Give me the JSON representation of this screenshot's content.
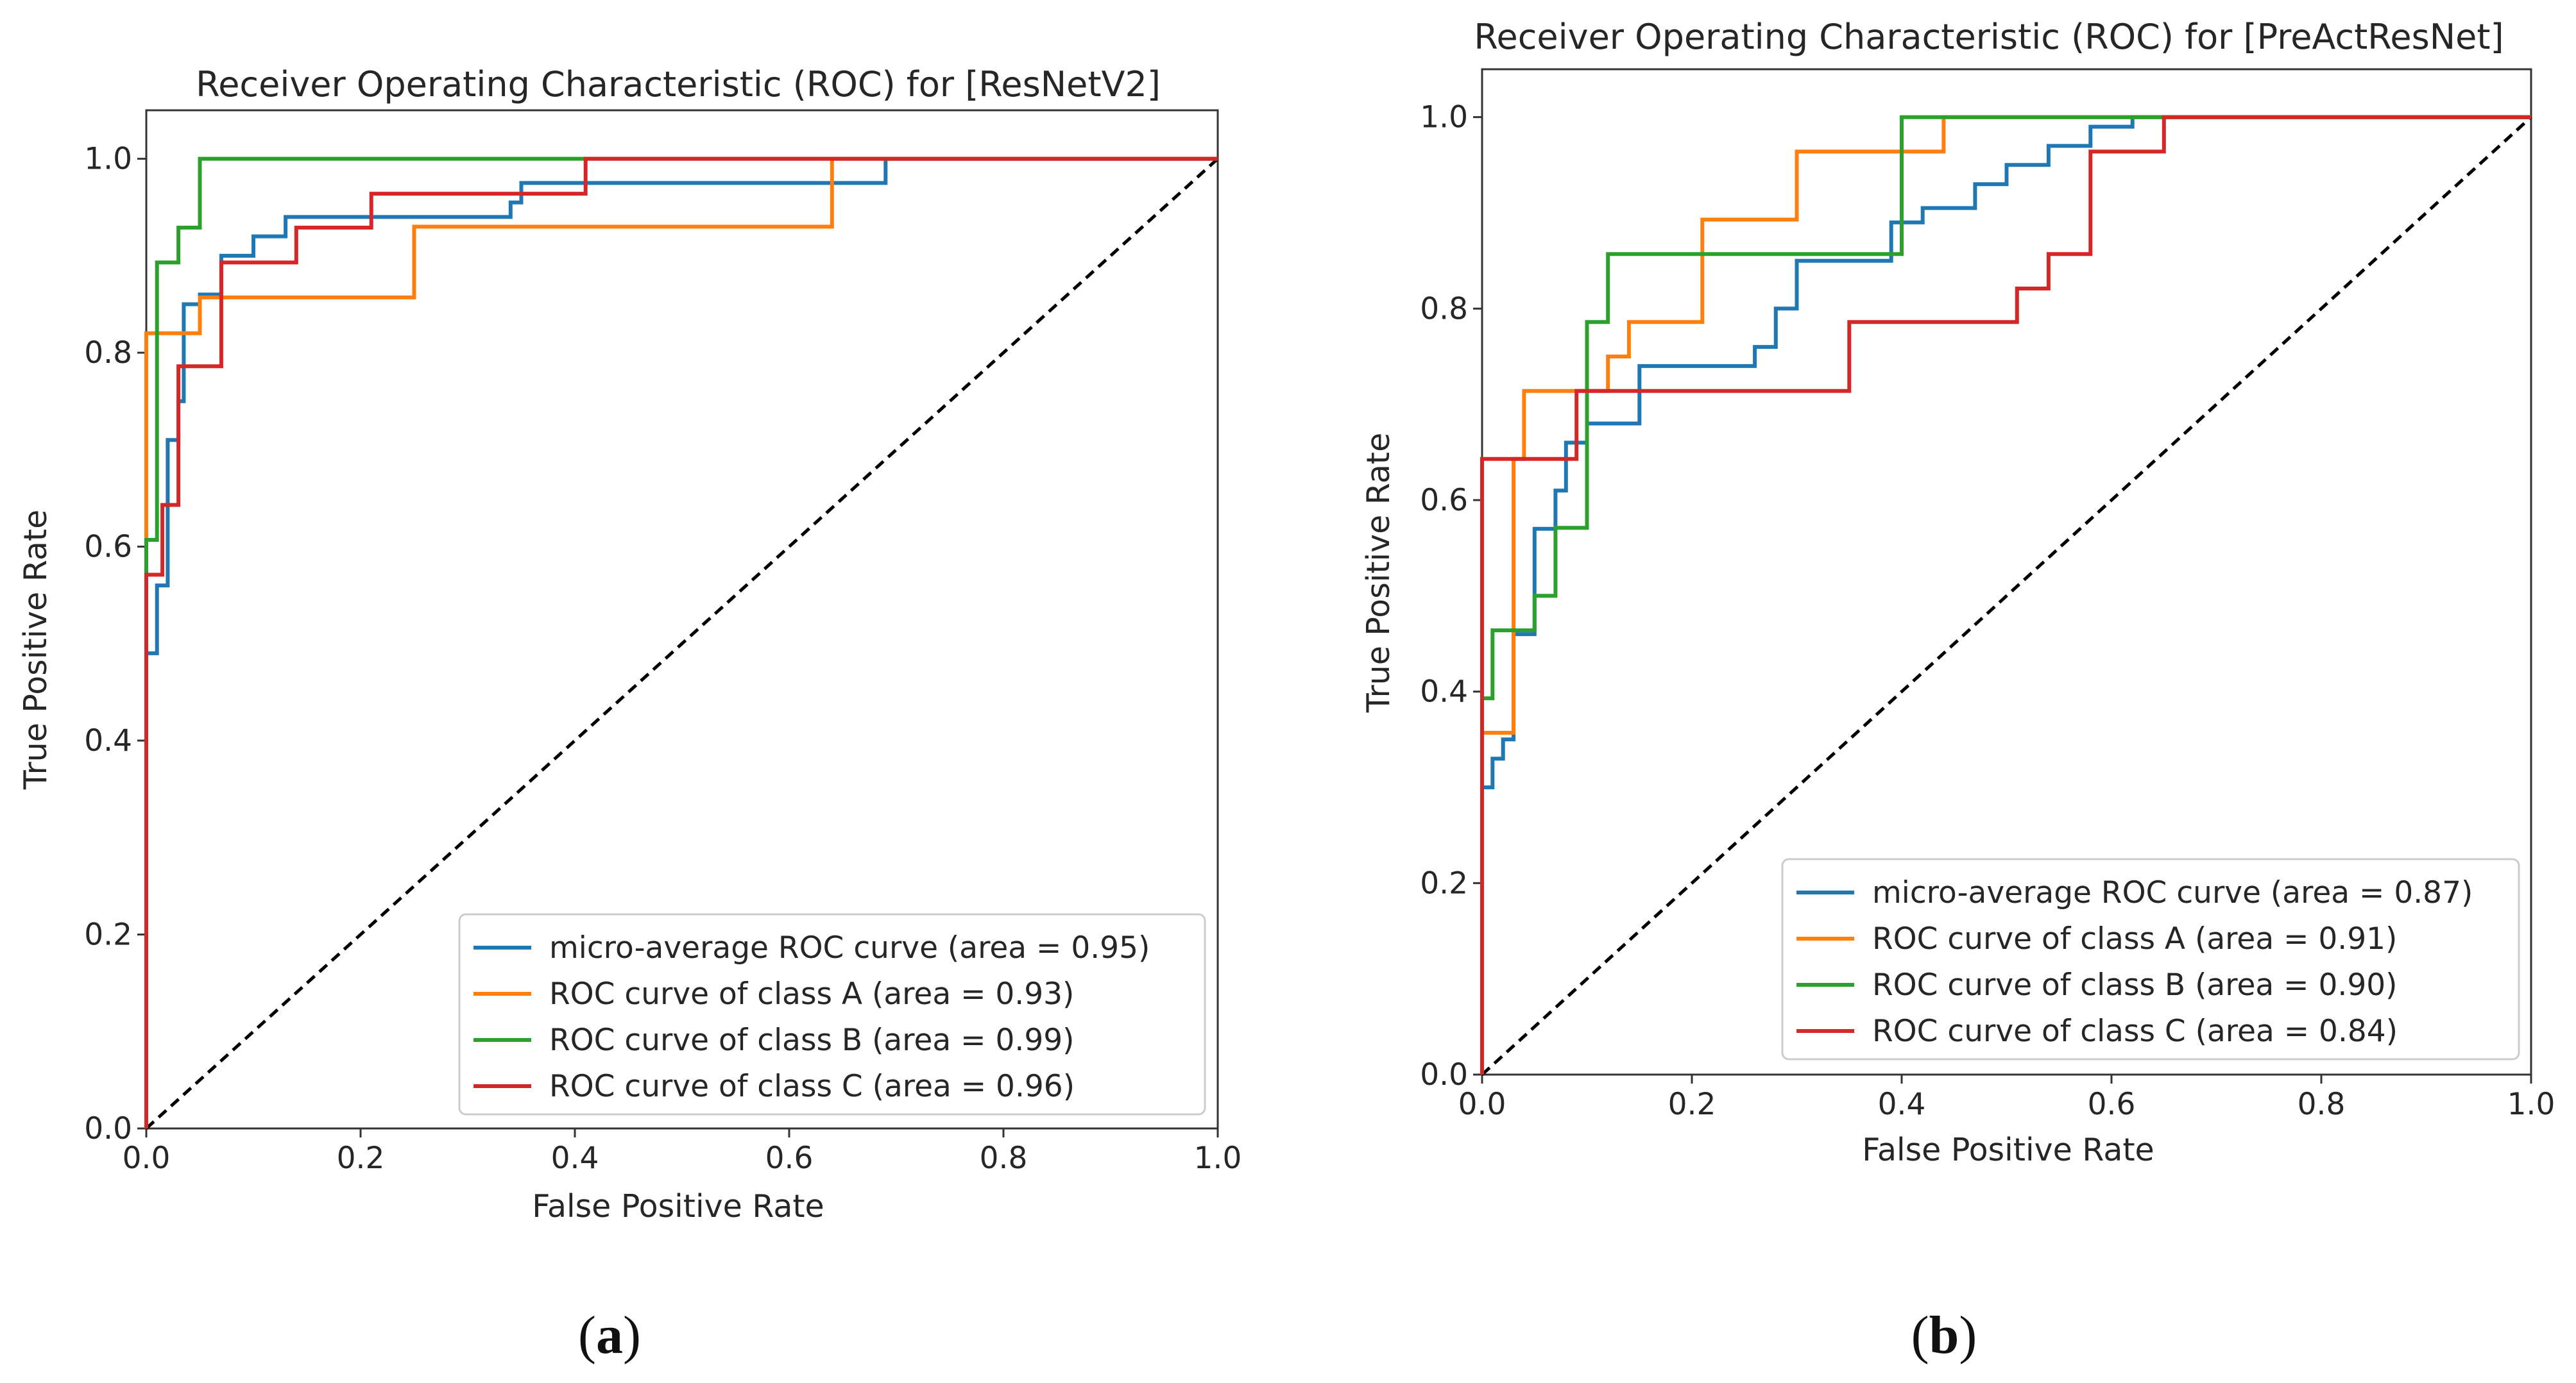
{
  "chart_data": [
    {
      "type": "line",
      "title": "Receiver Operating Characteristic (ROC) for [ResNetV2]",
      "xlabel": "False Positive Rate",
      "ylabel": "True Positive Rate",
      "xlim": [
        0.0,
        1.0
      ],
      "ylim": [
        0.0,
        1.05
      ],
      "xticks": [
        "0.0",
        "0.2",
        "0.4",
        "0.6",
        "0.8",
        "1.0"
      ],
      "yticks": [
        "0.0",
        "0.2",
        "0.4",
        "0.6",
        "0.8",
        "1.0"
      ],
      "grid": false,
      "legend_position": "lower-right",
      "caption_letter": "a",
      "diagonal": {
        "x": [
          0,
          1
        ],
        "y": [
          0,
          1
        ],
        "color": "#000000",
        "style": "dashed"
      },
      "series": [
        {
          "name": "micro-average",
          "legend": "micro-average ROC curve (area = 0.95)",
          "color": "#1f77b4",
          "x": [
            0.0,
            0.0,
            0.01,
            0.01,
            0.02,
            0.02,
            0.03,
            0.03,
            0.035,
            0.035,
            0.05,
            0.05,
            0.07,
            0.07,
            0.1,
            0.1,
            0.13,
            0.13,
            0.34,
            0.34,
            0.35,
            0.35,
            0.69,
            0.69,
            1.0
          ],
          "y": [
            0.0,
            0.49,
            0.49,
            0.56,
            0.56,
            0.71,
            0.71,
            0.75,
            0.75,
            0.85,
            0.85,
            0.86,
            0.86,
            0.9,
            0.9,
            0.92,
            0.92,
            0.94,
            0.94,
            0.955,
            0.955,
            0.975,
            0.975,
            1.0,
            1.0
          ]
        },
        {
          "name": "class A",
          "legend": "ROC curve of class A (area = 0.93)",
          "color": "#ff7f0e",
          "x": [
            0.0,
            0.0,
            0.05,
            0.05,
            0.25,
            0.25,
            0.64,
            0.64,
            1.0
          ],
          "y": [
            0.0,
            0.82,
            0.82,
            0.857,
            0.857,
            0.93,
            0.93,
            1.0,
            1.0
          ]
        },
        {
          "name": "class B",
          "legend": "ROC curve of class B (area = 0.99)",
          "color": "#2ca02c",
          "x": [
            0.0,
            0.0,
            0.01,
            0.01,
            0.03,
            0.03,
            0.05,
            0.05,
            1.0
          ],
          "y": [
            0.0,
            0.607,
            0.607,
            0.893,
            0.893,
            0.929,
            0.929,
            1.0,
            1.0
          ]
        },
        {
          "name": "class C",
          "legend": "ROC curve of class C (area = 0.96)",
          "color": "#d62728",
          "x": [
            0.0,
            0.0,
            0.015,
            0.015,
            0.03,
            0.03,
            0.07,
            0.07,
            0.14,
            0.14,
            0.21,
            0.21,
            0.41,
            0.41,
            1.0
          ],
          "y": [
            0.0,
            0.571,
            0.571,
            0.643,
            0.643,
            0.786,
            0.786,
            0.893,
            0.893,
            0.929,
            0.929,
            0.964,
            0.964,
            1.0,
            1.0
          ]
        }
      ]
    },
    {
      "type": "line",
      "title": "Receiver Operating Characteristic (ROC) for [PreActResNet]",
      "xlabel": "False Positive Rate",
      "ylabel": "True Positive Rate",
      "xlim": [
        0.0,
        1.0
      ],
      "ylim": [
        0.0,
        1.05
      ],
      "xticks": [
        "0.0",
        "0.2",
        "0.4",
        "0.6",
        "0.8",
        "1.0"
      ],
      "yticks": [
        "0.0",
        "0.2",
        "0.4",
        "0.6",
        "0.8",
        "1.0"
      ],
      "grid": false,
      "legend_position": "lower-right",
      "caption_letter": "b",
      "diagonal": {
        "x": [
          0,
          1
        ],
        "y": [
          0,
          1
        ],
        "color": "#000000",
        "style": "dashed"
      },
      "series": [
        {
          "name": "micro-average",
          "legend": "micro-average ROC curve (area = 0.87)",
          "color": "#1f77b4",
          "x": [
            0.0,
            0.0,
            0.01,
            0.01,
            0.02,
            0.02,
            0.03,
            0.03,
            0.05,
            0.05,
            0.07,
            0.07,
            0.08,
            0.08,
            0.1,
            0.1,
            0.15,
            0.15,
            0.26,
            0.26,
            0.28,
            0.28,
            0.3,
            0.3,
            0.39,
            0.39,
            0.42,
            0.42,
            0.47,
            0.47,
            0.5,
            0.5,
            0.54,
            0.54,
            0.58,
            0.58,
            0.62,
            0.62,
            1.0
          ],
          "y": [
            0.0,
            0.3,
            0.3,
            0.33,
            0.33,
            0.35,
            0.35,
            0.46,
            0.46,
            0.57,
            0.57,
            0.61,
            0.61,
            0.66,
            0.66,
            0.68,
            0.68,
            0.74,
            0.74,
            0.76,
            0.76,
            0.8,
            0.8,
            0.85,
            0.85,
            0.89,
            0.89,
            0.905,
            0.905,
            0.93,
            0.93,
            0.95,
            0.95,
            0.97,
            0.97,
            0.99,
            0.99,
            1.0,
            1.0
          ]
        },
        {
          "name": "class A",
          "legend": "ROC curve of class A (area = 0.91)",
          "color": "#ff7f0e",
          "x": [
            0.0,
            0.0,
            0.03,
            0.03,
            0.04,
            0.04,
            0.12,
            0.12,
            0.14,
            0.14,
            0.21,
            0.21,
            0.3,
            0.3,
            0.44,
            0.44,
            1.0
          ],
          "y": [
            0.0,
            0.357,
            0.357,
            0.643,
            0.643,
            0.714,
            0.714,
            0.75,
            0.75,
            0.786,
            0.786,
            0.893,
            0.893,
            0.964,
            0.964,
            1.0,
            1.0
          ]
        },
        {
          "name": "class B",
          "legend": "ROC curve of class B (area = 0.90)",
          "color": "#2ca02c",
          "x": [
            0.0,
            0.0,
            0.01,
            0.01,
            0.05,
            0.05,
            0.07,
            0.07,
            0.1,
            0.1,
            0.12,
            0.12,
            0.4,
            0.4,
            1.0
          ],
          "y": [
            0.0,
            0.393,
            0.393,
            0.464,
            0.464,
            0.5,
            0.5,
            0.571,
            0.571,
            0.786,
            0.786,
            0.857,
            0.857,
            1.0,
            1.0
          ]
        },
        {
          "name": "class C",
          "legend": "ROC curve of class C (area = 0.84)",
          "color": "#d62728",
          "x": [
            0.0,
            0.0,
            0.09,
            0.09,
            0.35,
            0.35,
            0.51,
            0.51,
            0.54,
            0.54,
            0.58,
            0.58,
            0.65,
            0.65,
            1.0
          ],
          "y": [
            0.0,
            0.643,
            0.643,
            0.714,
            0.714,
            0.786,
            0.786,
            0.821,
            0.821,
            0.857,
            0.857,
            0.964,
            0.964,
            1.0,
            1.0
          ]
        }
      ]
    }
  ]
}
